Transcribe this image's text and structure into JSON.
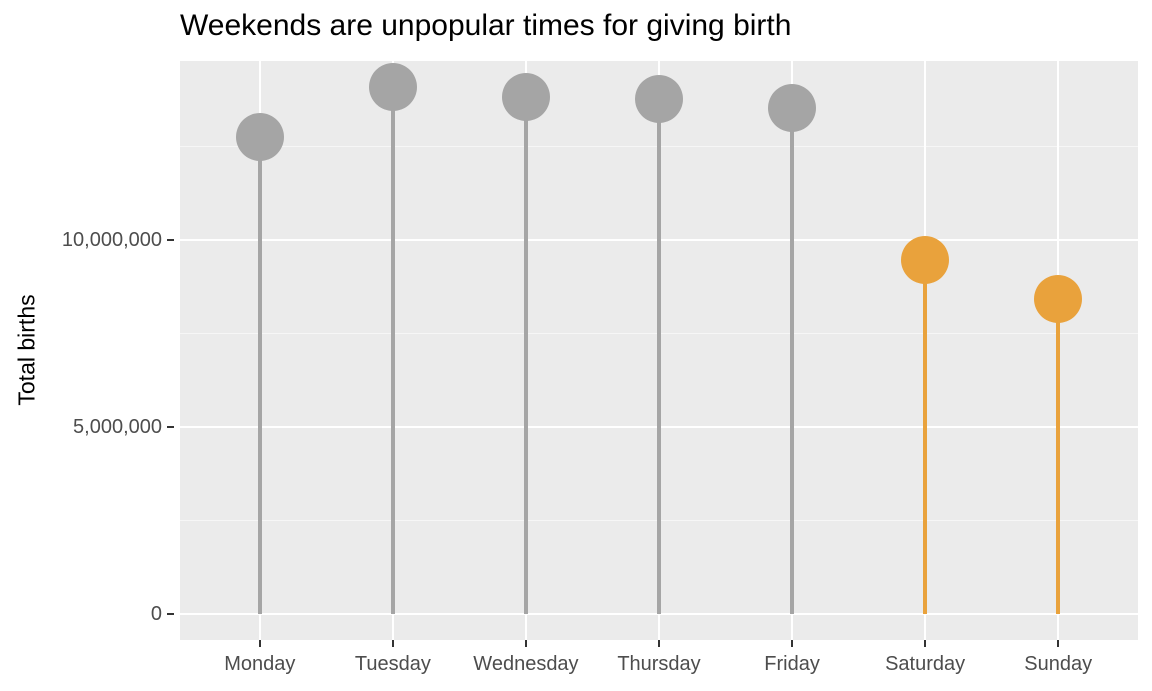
{
  "chart_data": {
    "type": "lollipop",
    "title": "Weekends are unpopular times for giving birth",
    "xlabel": "",
    "ylabel": "Total births",
    "categories": [
      "Monday",
      "Tuesday",
      "Wednesday",
      "Thursday",
      "Friday",
      "Saturday",
      "Sunday"
    ],
    "values": [
      12750000,
      14090000,
      13820000,
      13780000,
      13520000,
      9470000,
      8420000
    ],
    "groups": [
      "weekday",
      "weekday",
      "weekday",
      "weekday",
      "weekday",
      "weekend",
      "weekend"
    ],
    "colors": {
      "weekday": "#A5A5A5",
      "weekend": "#E9A23C"
    },
    "ylim": [
      -700000,
      14790000
    ],
    "y_major_ticks": [
      0,
      5000000,
      10000000
    ],
    "y_tick_labels": [
      "0",
      "5,000,000",
      "10,000,000"
    ],
    "y_minor_ticks": [
      2500000,
      7500000,
      12500000
    ],
    "grid": true,
    "legend": "none",
    "panel_background": "#EBEBEB",
    "gridline_color": "#FFFFFF",
    "axis_text_color": "#4D4D4D"
  }
}
